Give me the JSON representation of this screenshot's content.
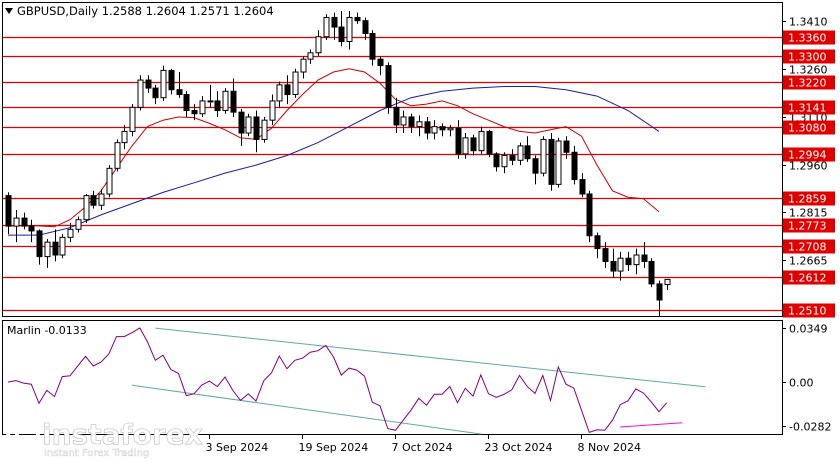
{
  "header": {
    "symbol_line": "GBPUSD,Daily  1.2588 1.2604 1.2571 1.2604"
  },
  "indicator": {
    "label": "Marlin -0.0133",
    "axis": [
      {
        "v": 0.0349,
        "label": "0.0349"
      },
      {
        "v": 0.0,
        "label": "0.00"
      },
      {
        "v": -0.0282,
        "label": "-0.0282"
      }
    ],
    "ylim": [
      -0.0335,
      0.0395
    ],
    "line_color": "#800080",
    "channel_color": "#5fa8a8",
    "signal_color": "#ff00ff"
  },
  "x_axis": {
    "labels": [
      {
        "text": "3 Sep 2024",
        "i": 26
      },
      {
        "text": "19 Sep 2024",
        "i": 38
      },
      {
        "text": "7 Oct 2024",
        "i": 50
      },
      {
        "text": "23 Oct 2024",
        "i": 62
      },
      {
        "text": "8 Nov 2024",
        "i": 74
      }
    ]
  },
  "watermark": {
    "brand": "instaforex",
    "tagline": "Instant Forex Trading"
  },
  "chart_data": {
    "type": "candlestick",
    "ylim": [
      1.249,
      1.3465
    ],
    "price_ticks": [
      "1.3410",
      "1.3260",
      "1.3110",
      "1.2960",
      "1.2815",
      "1.2665"
    ],
    "price_tick_values": [
      1.341,
      1.326,
      1.311,
      1.296,
      1.2815,
      1.2665
    ],
    "levels": [
      {
        "value": 1.336,
        "label": "1.3360"
      },
      {
        "value": 1.33,
        "label": "1.3300"
      },
      {
        "value": 1.322,
        "label": "1.3220"
      },
      {
        "value": 1.3141,
        "label": "1.3141"
      },
      {
        "value": 1.308,
        "label": "1.3080"
      },
      {
        "value": 1.2994,
        "label": "1.2994"
      },
      {
        "value": 1.2859,
        "label": "1.2859"
      },
      {
        "value": 1.2773,
        "label": "1.2773"
      },
      {
        "value": 1.2708,
        "label": "1.2708"
      },
      {
        "value": 1.2612,
        "label": "1.2612"
      },
      {
        "value": 1.251,
        "label": "1.2510"
      }
    ],
    "candles": [
      [
        1.2865,
        1.2875,
        1.2745,
        1.277
      ],
      [
        1.277,
        1.282,
        1.272,
        1.2795
      ],
      [
        1.2795,
        1.2812,
        1.276,
        1.277
      ],
      [
        1.277,
        1.279,
        1.272,
        1.2755
      ],
      [
        1.2755,
        1.276,
        1.265,
        1.2675
      ],
      [
        1.2675,
        1.273,
        1.264,
        1.272
      ],
      [
        1.272,
        1.276,
        1.266,
        1.268
      ],
      [
        1.268,
        1.2745,
        1.267,
        1.2735
      ],
      [
        1.2735,
        1.278,
        1.272,
        1.276
      ],
      [
        1.276,
        1.28,
        1.275,
        1.279
      ],
      [
        1.279,
        1.287,
        1.278,
        1.2865
      ],
      [
        1.2865,
        1.288,
        1.2825,
        1.2835
      ],
      [
        1.2835,
        1.2885,
        1.282,
        1.287
      ],
      [
        1.287,
        1.296,
        1.286,
        1.295
      ],
      [
        1.295,
        1.304,
        1.294,
        1.303
      ],
      [
        1.303,
        1.3085,
        1.301,
        1.3065
      ],
      [
        1.3065,
        1.315,
        1.305,
        1.314
      ],
      [
        1.314,
        1.324,
        1.313,
        1.3225
      ],
      [
        1.3225,
        1.324,
        1.3185,
        1.32
      ],
      [
        1.32,
        1.321,
        1.315,
        1.317
      ],
      [
        1.317,
        1.327,
        1.316,
        1.3255
      ],
      [
        1.3255,
        1.326,
        1.318,
        1.3195
      ],
      [
        1.3195,
        1.325,
        1.317,
        1.318
      ],
      [
        1.318,
        1.319,
        1.311,
        1.313
      ],
      [
        1.313,
        1.315,
        1.31,
        1.312
      ],
      [
        1.312,
        1.3175,
        1.311,
        1.316
      ],
      [
        1.316,
        1.321,
        1.314,
        1.316
      ],
      [
        1.316,
        1.319,
        1.311,
        1.313
      ],
      [
        1.313,
        1.32,
        1.312,
        1.319
      ],
      [
        1.319,
        1.323,
        1.311,
        1.3125
      ],
      [
        1.3125,
        1.3135,
        1.302,
        1.306
      ],
      [
        1.306,
        1.312,
        1.305,
        1.311
      ],
      [
        1.311,
        1.313,
        1.3,
        1.304
      ],
      [
        1.304,
        1.311,
        1.303,
        1.31
      ],
      [
        1.31,
        1.318,
        1.3085,
        1.316
      ],
      [
        1.316,
        1.322,
        1.314,
        1.321
      ],
      [
        1.321,
        1.324,
        1.315,
        1.318
      ],
      [
        1.318,
        1.326,
        1.317,
        1.325
      ],
      [
        1.325,
        1.33,
        1.323,
        1.329
      ],
      [
        1.329,
        1.332,
        1.3275,
        1.331
      ],
      [
        1.331,
        1.338,
        1.33,
        1.336
      ],
      [
        1.336,
        1.343,
        1.335,
        1.342
      ],
      [
        1.342,
        1.3435,
        1.335,
        1.339
      ],
      [
        1.339,
        1.344,
        1.333,
        1.3345
      ],
      [
        1.3345,
        1.344,
        1.332,
        1.342
      ],
      [
        1.342,
        1.3435,
        1.34,
        1.341
      ],
      [
        1.341,
        1.342,
        1.335,
        1.337
      ],
      [
        1.337,
        1.338,
        1.327,
        1.329
      ],
      [
        1.329,
        1.33,
        1.324,
        1.327
      ],
      [
        1.327,
        1.328,
        1.312,
        1.314
      ],
      [
        1.314,
        1.317,
        1.306,
        1.3085
      ],
      [
        1.3085,
        1.313,
        1.306,
        1.311
      ],
      [
        1.311,
        1.312,
        1.306,
        1.308
      ],
      [
        1.308,
        1.3115,
        1.305,
        1.3095
      ],
      [
        1.3095,
        1.311,
        1.304,
        1.306
      ],
      [
        1.306,
        1.31,
        1.304,
        1.308
      ],
      [
        1.308,
        1.309,
        1.305,
        1.307
      ],
      [
        1.307,
        1.3085,
        1.305,
        1.3075
      ],
      [
        1.3075,
        1.31,
        1.298,
        1.2995
      ],
      [
        1.2995,
        1.306,
        1.298,
        1.3045
      ],
      [
        1.3045,
        1.3055,
        1.299,
        1.3005
      ],
      [
        1.3005,
        1.308,
        1.2995,
        1.3065
      ],
      [
        1.3065,
        1.307,
        1.2985,
        1.2995
      ],
      [
        1.2995,
        1.3,
        1.294,
        1.2955
      ],
      [
        1.2955,
        1.3,
        1.2935,
        1.299
      ],
      [
        1.299,
        1.301,
        1.296,
        1.2975
      ],
      [
        1.2975,
        1.303,
        1.296,
        1.302
      ],
      [
        1.302,
        1.305,
        1.297,
        1.298
      ],
      [
        1.298,
        1.299,
        1.29,
        1.2935
      ],
      [
        1.2935,
        1.305,
        1.2925,
        1.304
      ],
      [
        1.304,
        1.306,
        1.288,
        1.29
      ],
      [
        1.29,
        1.3045,
        1.289,
        1.3035
      ],
      [
        1.3035,
        1.305,
        1.298,
        1.3
      ],
      [
        1.3,
        1.302,
        1.29,
        1.2915
      ],
      [
        1.2915,
        1.2935,
        1.286,
        1.287
      ],
      [
        1.287,
        1.288,
        1.272,
        1.274
      ],
      [
        1.274,
        1.275,
        1.267,
        1.27
      ],
      [
        1.27,
        1.272,
        1.264,
        1.266
      ],
      [
        1.266,
        1.27,
        1.261,
        1.263
      ],
      [
        1.263,
        1.269,
        1.26,
        1.267
      ],
      [
        1.267,
        1.269,
        1.263,
        1.265
      ],
      [
        1.265,
        1.27,
        1.262,
        1.268
      ],
      [
        1.268,
        1.272,
        1.264,
        1.266
      ],
      [
        1.266,
        1.267,
        1.258,
        1.259
      ],
      [
        1.259,
        1.26,
        1.249,
        1.254
      ],
      [
        1.2588,
        1.2604,
        1.2571,
        1.2604
      ]
    ],
    "ma_fast": {
      "color": "#cc0000",
      "points": [
        [
          0,
          1.277
        ],
        [
          3,
          1.2772
        ],
        [
          6,
          1.2768
        ],
        [
          8,
          1.279
        ],
        [
          10,
          1.283
        ],
        [
          12,
          1.288
        ],
        [
          14,
          1.295
        ],
        [
          16,
          1.302
        ],
        [
          18,
          1.308
        ],
        [
          20,
          1.31
        ],
        [
          22,
          1.311
        ],
        [
          24,
          1.3108
        ],
        [
          26,
          1.309
        ],
        [
          28,
          1.307
        ],
        [
          30,
          1.3045
        ],
        [
          32,
          1.304
        ],
        [
          34,
          1.3075
        ],
        [
          36,
          1.313
        ],
        [
          38,
          1.318
        ],
        [
          40,
          1.3225
        ],
        [
          42,
          1.325
        ],
        [
          44,
          1.326
        ],
        [
          46,
          1.325
        ],
        [
          48,
          1.3215
        ],
        [
          50,
          1.3165
        ],
        [
          52,
          1.3145
        ],
        [
          54,
          1.315
        ],
        [
          56,
          1.316
        ],
        [
          58,
          1.3145
        ],
        [
          60,
          1.312
        ],
        [
          62,
          1.31
        ],
        [
          64,
          1.308
        ],
        [
          66,
          1.3065
        ],
        [
          68,
          1.306
        ],
        [
          70,
          1.307
        ],
        [
          72,
          1.308
        ],
        [
          74,
          1.305
        ],
        [
          76,
          1.296
        ],
        [
          78,
          1.288
        ],
        [
          80,
          1.286
        ],
        [
          82,
          1.2855
        ],
        [
          84,
          1.2815
        ]
      ]
    },
    "ma_slow": {
      "color": "#1a1aaa",
      "points": [
        [
          0,
          1.2742
        ],
        [
          4,
          1.2742
        ],
        [
          8,
          1.2765
        ],
        [
          12,
          1.2805
        ],
        [
          16,
          1.284
        ],
        [
          20,
          1.2875
        ],
        [
          24,
          1.2905
        ],
        [
          28,
          1.2935
        ],
        [
          32,
          1.296
        ],
        [
          36,
          1.299
        ],
        [
          40,
          1.303
        ],
        [
          44,
          1.308
        ],
        [
          48,
          1.313
        ],
        [
          52,
          1.317
        ],
        [
          56,
          1.319
        ],
        [
          60,
          1.32
        ],
        [
          64,
          1.3205
        ],
        [
          68,
          1.3205
        ],
        [
          72,
          1.3195
        ],
        [
          76,
          1.3175
        ],
        [
          80,
          1.313
        ],
        [
          84,
          1.3065
        ]
      ]
    }
  }
}
